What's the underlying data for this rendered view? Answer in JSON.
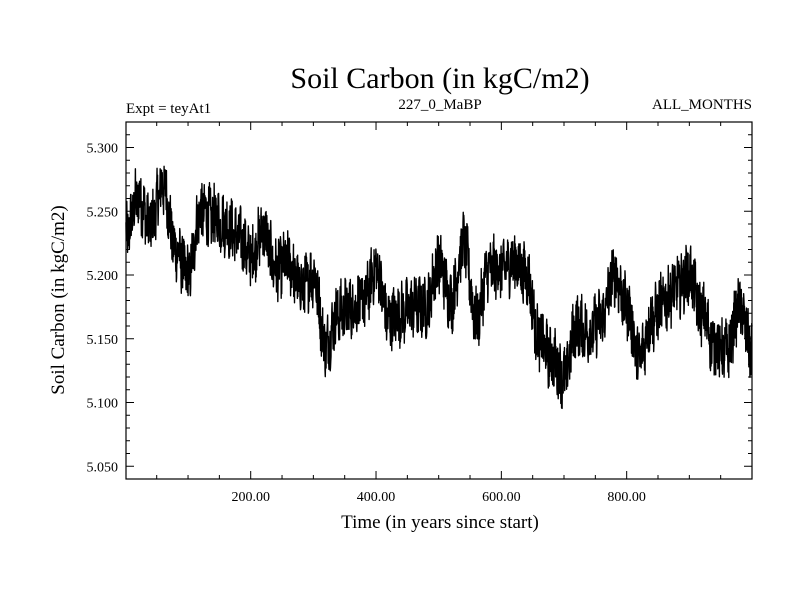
{
  "chart_data": {
    "type": "line",
    "title": "Soil Carbon (in kgC/m2)",
    "subtitle_left": "Expt = teyAt1",
    "subtitle_center": "227_0_MaBP",
    "subtitle_right": "ALL_MONTHS",
    "xlabel": "Time (in years since start)",
    "ylabel": "Soil Carbon (in kgC/m2)",
    "xlim": [
      1,
      1000
    ],
    "ylim": [
      5.04,
      5.32
    ],
    "xticks": [
      200,
      400,
      600,
      800
    ],
    "xtick_labels": [
      "200.00",
      "400.00",
      "600.00",
      "800.00"
    ],
    "yticks": [
      5.05,
      5.1,
      5.15,
      5.2,
      5.25,
      5.3
    ],
    "ytick_labels": [
      "5.050",
      "5.100",
      "5.150",
      "5.200",
      "5.250",
      "5.300"
    ],
    "grid": false,
    "series": [
      {
        "name": "Soil Carbon",
        "color": "#000000",
        "x": [
          0,
          20,
          40,
          60,
          80,
          100,
          120,
          140,
          160,
          180,
          200,
          220,
          240,
          260,
          280,
          300,
          320,
          340,
          360,
          380,
          400,
          420,
          440,
          460,
          480,
          500,
          520,
          540,
          560,
          580,
          600,
          620,
          640,
          660,
          680,
          700,
          720,
          740,
          760,
          780,
          800,
          820,
          840,
          860,
          880,
          900,
          920,
          940,
          960,
          980,
          1000
        ],
        "y": [
          5.23,
          5.26,
          5.24,
          5.27,
          5.22,
          5.2,
          5.25,
          5.245,
          5.24,
          5.23,
          5.215,
          5.235,
          5.205,
          5.21,
          5.19,
          5.2,
          5.145,
          5.17,
          5.175,
          5.18,
          5.205,
          5.165,
          5.17,
          5.175,
          5.175,
          5.21,
          5.18,
          5.225,
          5.165,
          5.205,
          5.205,
          5.21,
          5.2,
          5.15,
          5.135,
          5.12,
          5.16,
          5.155,
          5.165,
          5.2,
          5.175,
          5.135,
          5.165,
          5.18,
          5.19,
          5.2,
          5.17,
          5.145,
          5.14,
          5.175,
          5.14
        ],
        "noise_amplitude": 0.022
      }
    ]
  }
}
